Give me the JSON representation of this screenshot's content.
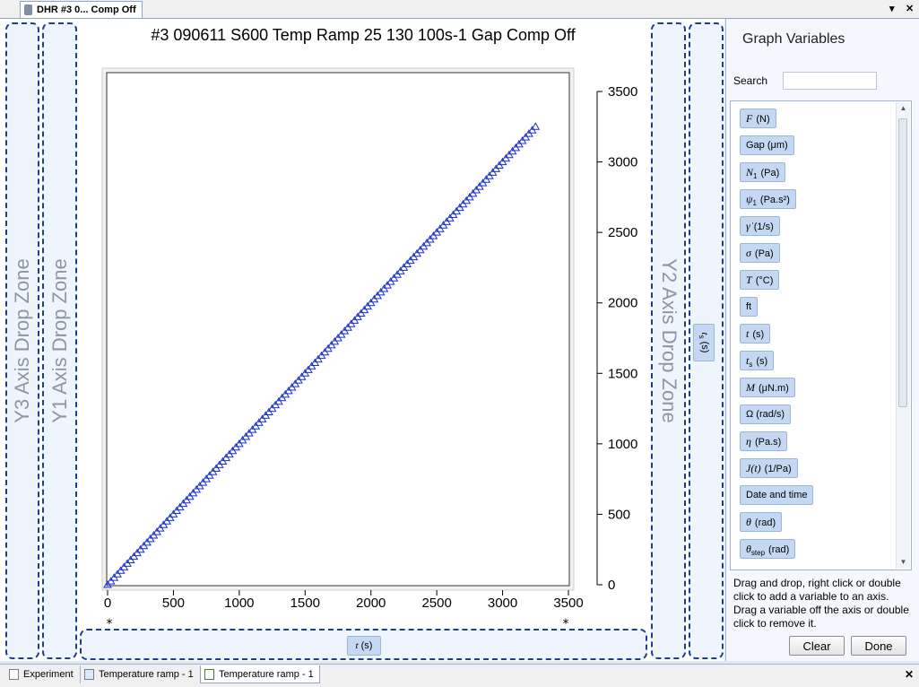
{
  "window": {
    "doc_tab": "DHR #3 0... Comp Off",
    "dropdown_glyph": "▾",
    "close_glyph": "✕"
  },
  "drop_zones": {
    "y3": "Y3 Axis Drop Zone",
    "y1": "Y1 Axis Drop Zone",
    "y2": "Y2 Axis Drop Zone"
  },
  "axis_chips": {
    "y_right_var": "t",
    "y_right_sub": "s",
    "y_right_unit": "(s)",
    "x_var": "t",
    "x_unit": "(s)"
  },
  "chart_data": {
    "type": "scatter",
    "title": "#3 090611 S600 Temp Ramp 25 130 100s-1 Gap Comp Off",
    "xlim": [
      0,
      3500
    ],
    "ylim": [
      0,
      3500
    ],
    "x_ticks": [
      0,
      500,
      1000,
      1500,
      2000,
      2500,
      3000,
      3500
    ],
    "y_ticks": [
      0,
      500,
      1000,
      1500,
      2000,
      2500,
      3000,
      3500
    ],
    "y_axis_side": "right",
    "marker": "open-triangle",
    "color": "#1a2fd0",
    "grid": false,
    "series": [
      {
        "x_start": 0,
        "x_end": 3250,
        "x_step": 25,
        "slope": 1.0
      }
    ],
    "corner_marks": [
      "*",
      "*"
    ]
  },
  "panel": {
    "title": "Graph Variables",
    "search_label": "Search",
    "search_value": "",
    "variables": [
      {
        "sym": "F",
        "sub": "",
        "unit": "(N)"
      },
      {
        "sym": "",
        "sub": "",
        "unit": "Gap  (μm)"
      },
      {
        "sym": "N",
        "sub": "1",
        "unit": "(Pa)"
      },
      {
        "sym": "ψ",
        "sub": "1",
        "unit": "(Pa.s²)"
      },
      {
        "sym": "γ̇",
        "sub": "",
        "unit": "(1/s)"
      },
      {
        "sym": "σ",
        "sub": "",
        "unit": "(Pa)"
      },
      {
        "sym": "T",
        "sub": "",
        "unit": "(°C)"
      },
      {
        "sym": "",
        "sub": "",
        "unit": "ft"
      },
      {
        "sym": "t",
        "sub": "",
        "unit": "(s)"
      },
      {
        "sym": "t",
        "sub": "s",
        "unit": "(s)"
      },
      {
        "sym": "M",
        "sub": "",
        "unit": "(μN.m)"
      },
      {
        "sym": "",
        "sub": "",
        "unit": "Ω  (rad/s)"
      },
      {
        "sym": "η",
        "sub": "",
        "unit": "(Pa.s)"
      },
      {
        "sym": "J(t)",
        "sub": "",
        "unit": "(1/Pa)"
      },
      {
        "sym": "",
        "sub": "",
        "unit": "Date and time"
      },
      {
        "sym": "θ",
        "sub": "",
        "unit": "(rad)"
      },
      {
        "sym": "θ",
        "sub": "step",
        "unit": "(rad)"
      }
    ],
    "help": "Drag and drop, right click or double click to add a variable to an axis. Drag a variable off the axis or double click to remove it.",
    "clear_label": "Clear",
    "done_label": "Done"
  },
  "bottom_tabs": [
    {
      "label": "Experiment"
    },
    {
      "label": "Temperature ramp - 1"
    },
    {
      "label": "Temperature ramp - 1",
      "active": true
    }
  ],
  "bottom_close": "✕"
}
